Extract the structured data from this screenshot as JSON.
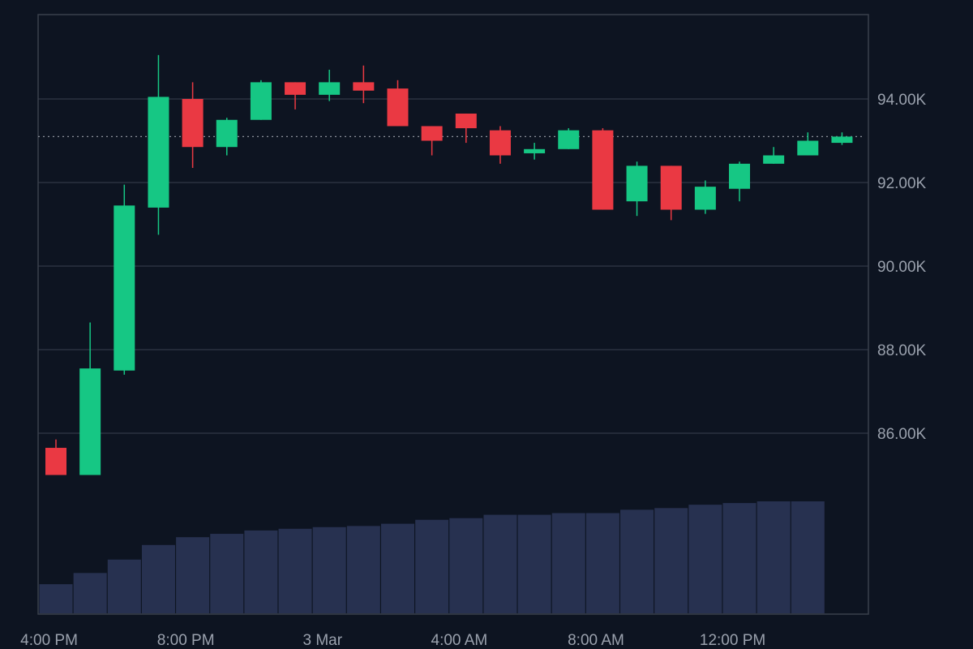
{
  "colors": {
    "background": "#0d1421",
    "up": "#16c784",
    "down": "#ea3943",
    "volume": "#273150",
    "grid": "#2b3140",
    "text": "#9aa1ad"
  },
  "chart_data": {
    "type": "candlestick",
    "title": "",
    "xlabel": "",
    "ylabel": "",
    "ylim": [
      84000,
      96000
    ],
    "y_ticks": [
      86000,
      88000,
      90000,
      92000,
      94000
    ],
    "y_tick_labels": [
      "86.00K",
      "88.00K",
      "90.00K",
      "92.00K",
      "94.00K"
    ],
    "x_tick_labels": [
      {
        "label": "4:00 PM",
        "index": -0.2
      },
      {
        "label": "8:00 PM",
        "index": 3.8
      },
      {
        "label": "3 Mar",
        "index": 7.8
      },
      {
        "label": "4:00 AM",
        "index": 11.8
      },
      {
        "label": "8:00 AM",
        "index": 15.8
      },
      {
        "label": "12:00 PM",
        "index": 19.8
      }
    ],
    "last_price": 93100,
    "grid": true,
    "candles": [
      {
        "open": 85650,
        "high": 85850,
        "low": 85000,
        "close": 85000
      },
      {
        "open": 85000,
        "high": 88650,
        "low": 85000,
        "close": 87550
      },
      {
        "open": 87500,
        "high": 91950,
        "low": 87400,
        "close": 91450
      },
      {
        "open": 91400,
        "high": 95050,
        "low": 90750,
        "close": 94050
      },
      {
        "open": 94000,
        "high": 94400,
        "low": 92350,
        "close": 92850
      },
      {
        "open": 92850,
        "high": 93550,
        "low": 92650,
        "close": 93500
      },
      {
        "open": 93500,
        "high": 94450,
        "low": 93500,
        "close": 94400
      },
      {
        "open": 94400,
        "high": 94400,
        "low": 93750,
        "close": 94100
      },
      {
        "open": 94100,
        "high": 94700,
        "low": 93950,
        "close": 94400
      },
      {
        "open": 94400,
        "high": 94800,
        "low": 93900,
        "close": 94200
      },
      {
        "open": 94250,
        "high": 94450,
        "low": 93350,
        "close": 93350
      },
      {
        "open": 93350,
        "high": 93350,
        "low": 92650,
        "close": 93000
      },
      {
        "open": 93650,
        "high": 93650,
        "low": 92950,
        "close": 93300
      },
      {
        "open": 93250,
        "high": 93350,
        "low": 92450,
        "close": 92650
      },
      {
        "open": 92700,
        "high": 92950,
        "low": 92550,
        "close": 92800
      },
      {
        "open": 92800,
        "high": 93300,
        "low": 92800,
        "close": 93250
      },
      {
        "open": 93250,
        "high": 93300,
        "low": 91350,
        "close": 91350
      },
      {
        "open": 91550,
        "high": 92500,
        "low": 91200,
        "close": 92400
      },
      {
        "open": 92400,
        "high": 92400,
        "low": 91100,
        "close": 91350
      },
      {
        "open": 91350,
        "high": 92050,
        "low": 91250,
        "close": 91900
      },
      {
        "open": 91850,
        "high": 92500,
        "low": 91550,
        "close": 92450
      },
      {
        "open": 92450,
        "high": 92850,
        "low": 92450,
        "close": 92650
      },
      {
        "open": 92650,
        "high": 93200,
        "low": 92650,
        "close": 93000
      },
      {
        "open": 92950,
        "high": 93200,
        "low": 92900,
        "close": 93100
      }
    ],
    "volume": [
      0.26,
      0.36,
      0.48,
      0.61,
      0.68,
      0.71,
      0.74,
      0.755,
      0.77,
      0.78,
      0.8,
      0.835,
      0.85,
      0.88,
      0.88,
      0.895,
      0.895,
      0.925,
      0.94,
      0.97,
      0.985,
      1.0,
      1.0
    ]
  }
}
